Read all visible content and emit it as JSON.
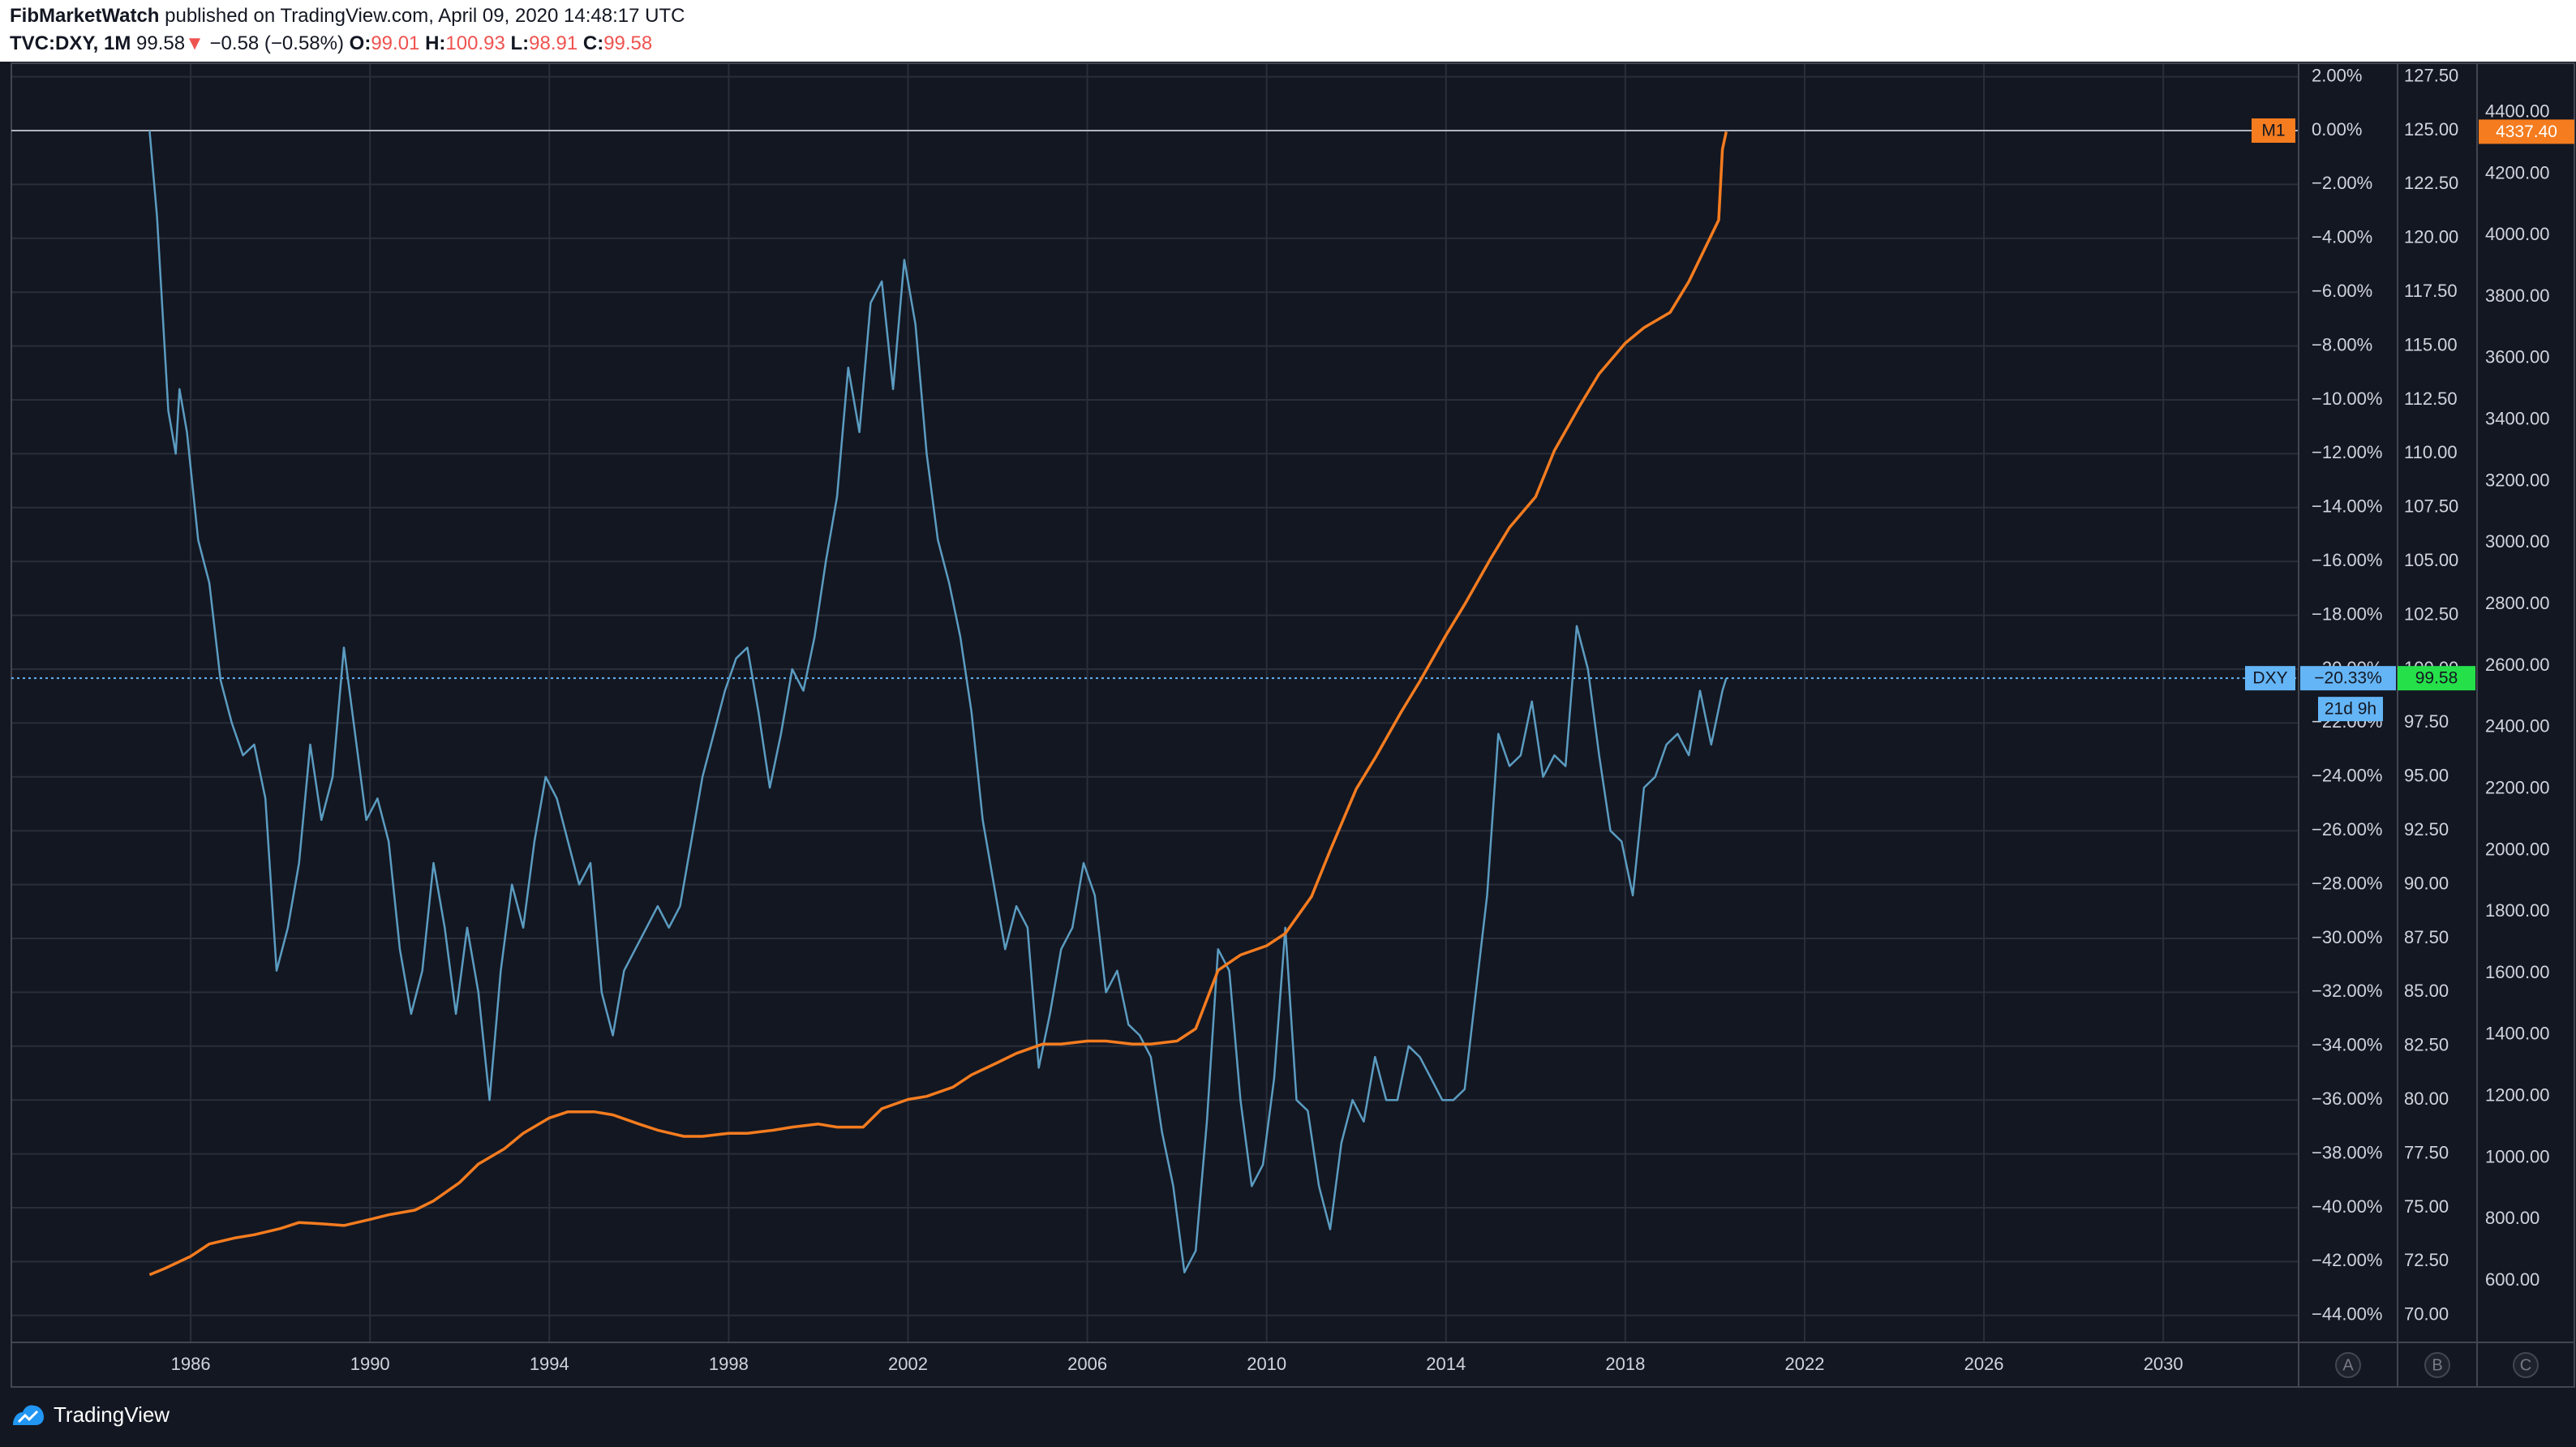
{
  "header": {
    "author": "FibMarketWatch",
    "published_text": "published on TradingView.com, April 09, 2020 14:48:17 UTC",
    "symbol": "TVC:DXY, 1M",
    "price": "99.58",
    "change_arrow": "▼",
    "change": "−0.58 (−0.58%)",
    "o_label": "O:",
    "o_value": "99.01",
    "h_label": "H:",
    "h_value": "100.93",
    "l_label": "L:",
    "l_value": "98.91",
    "c_label": "C:",
    "c_value": "99.58"
  },
  "footer": {
    "brand": "TradingView",
    "logo_icon": "tradingview-logo-icon"
  },
  "colors": {
    "background": "#131722",
    "grid": "#2a2e39",
    "dxy_line": "#5b9cc1",
    "m1_line": "#f57c1f",
    "dxy_tag": "#64b5f6",
    "price_tag": "#26e04a",
    "m1_tag": "#f57c1f",
    "down": "#ef5350"
  },
  "chart_data": {
    "type": "line",
    "x_ticks": [
      "1986",
      "1990",
      "1994",
      "1998",
      "2002",
      "2006",
      "2010",
      "2014",
      "2018",
      "2022",
      "2026",
      "2030"
    ],
    "x_range": [
      "1982-01",
      "2033-01"
    ],
    "scale_a_percent": {
      "ticks": [
        "2.00%",
        "0.00%",
        "−2.00%",
        "−4.00%",
        "−6.00%",
        "−8.00%",
        "−10.00%",
        "−12.00%",
        "−14.00%",
        "−16.00%",
        "−18.00%",
        "−20.00%",
        "−22.00%",
        "−24.00%",
        "−26.00%",
        "−28.00%",
        "−30.00%",
        "−32.00%",
        "−34.00%",
        "−36.00%",
        "−38.00%",
        "−40.00%",
        "−42.00%",
        "−44.00%"
      ],
      "range": [
        -45,
        2.5
      ]
    },
    "scale_b_dxy": {
      "ticks": [
        "127.50",
        "125.00",
        "122.50",
        "120.00",
        "117.50",
        "115.00",
        "112.50",
        "110.00",
        "107.50",
        "105.00",
        "102.50",
        "100.00",
        "97.50",
        "95.00",
        "92.50",
        "90.00",
        "87.50",
        "85.00",
        "82.50",
        "80.00",
        "77.50",
        "75.00",
        "72.50",
        "70.00"
      ],
      "range": [
        68.75,
        128.125
      ]
    },
    "scale_c_m1": {
      "ticks": [
        "4400.00",
        "4200.00",
        "4000.00",
        "3800.00",
        "3600.00",
        "3400.00",
        "3200.00",
        "3000.00",
        "2800.00",
        "2600.00",
        "2400.00",
        "2200.00",
        "2000.00",
        "1800.00",
        "1600.00",
        "1400.00",
        "1200.00",
        "1000.00",
        "800.00",
        "600.00"
      ],
      "range": [
        400,
        4560
      ]
    },
    "scale_labels": [
      "A",
      "B",
      "C"
    ],
    "series": [
      {
        "name": "DXY",
        "scale": "B",
        "points": [
          [
            "1985-02",
            125.0
          ],
          [
            "1985-04",
            121.0
          ],
          [
            "1985-07",
            112.0
          ],
          [
            "1985-09",
            110.0
          ],
          [
            "1985-10",
            113.0
          ],
          [
            "1985-12",
            111.0
          ],
          [
            "1986-03",
            106.0
          ],
          [
            "1986-06",
            104.0
          ],
          [
            "1986-09",
            99.5
          ],
          [
            "1986-12",
            97.5
          ],
          [
            "1987-03",
            96.0
          ],
          [
            "1987-06",
            96.5
          ],
          [
            "1987-09",
            94.0
          ],
          [
            "1987-12",
            86.0
          ],
          [
            "1988-03",
            88.0
          ],
          [
            "1988-06",
            91.0
          ],
          [
            "1988-09",
            96.5
          ],
          [
            "1988-12",
            93.0
          ],
          [
            "1989-03",
            95.0
          ],
          [
            "1989-06",
            101.0
          ],
          [
            "1989-09",
            97.0
          ],
          [
            "1989-12",
            93.0
          ],
          [
            "1990-03",
            94.0
          ],
          [
            "1990-06",
            92.0
          ],
          [
            "1990-09",
            87.0
          ],
          [
            "1990-12",
            84.0
          ],
          [
            "1991-03",
            86.0
          ],
          [
            "1991-06",
            91.0
          ],
          [
            "1991-09",
            88.0
          ],
          [
            "1991-12",
            84.0
          ],
          [
            "1992-03",
            88.0
          ],
          [
            "1992-06",
            85.0
          ],
          [
            "1992-09",
            80.0
          ],
          [
            "1992-12",
            86.0
          ],
          [
            "1993-03",
            90.0
          ],
          [
            "1993-06",
            88.0
          ],
          [
            "1993-09",
            92.0
          ],
          [
            "1993-12",
            95.0
          ],
          [
            "1994-03",
            94.0
          ],
          [
            "1994-06",
            92.0
          ],
          [
            "1994-09",
            90.0
          ],
          [
            "1994-12",
            91.0
          ],
          [
            "1995-03",
            85.0
          ],
          [
            "1995-06",
            83.0
          ],
          [
            "1995-09",
            86.0
          ],
          [
            "1995-12",
            87.0
          ],
          [
            "1996-03",
            88.0
          ],
          [
            "1996-06",
            89.0
          ],
          [
            "1996-09",
            88.0
          ],
          [
            "1996-12",
            89.0
          ],
          [
            "1997-03",
            92.0
          ],
          [
            "1997-06",
            95.0
          ],
          [
            "1997-09",
            97.0
          ],
          [
            "1997-12",
            99.0
          ],
          [
            "1998-03",
            100.5
          ],
          [
            "1998-06",
            101.0
          ],
          [
            "1998-09",
            98.0
          ],
          [
            "1998-12",
            94.5
          ],
          [
            "1999-03",
            97.0
          ],
          [
            "1999-06",
            100.0
          ],
          [
            "1999-09",
            99.0
          ],
          [
            "1999-12",
            101.5
          ],
          [
            "2000-03",
            105.0
          ],
          [
            "2000-06",
            108.0
          ],
          [
            "2000-09",
            114.0
          ],
          [
            "2000-12",
            111.0
          ],
          [
            "2001-03",
            117.0
          ],
          [
            "2001-06",
            118.0
          ],
          [
            "2001-09",
            113.0
          ],
          [
            "2001-12",
            119.0
          ],
          [
            "2002-03",
            116.0
          ],
          [
            "2002-06",
            110.0
          ],
          [
            "2002-09",
            106.0
          ],
          [
            "2002-12",
            104.0
          ],
          [
            "2003-03",
            101.5
          ],
          [
            "2003-06",
            98.0
          ],
          [
            "2003-09",
            93.0
          ],
          [
            "2003-12",
            90.0
          ],
          [
            "2004-03",
            87.0
          ],
          [
            "2004-06",
            89.0
          ],
          [
            "2004-09",
            88.0
          ],
          [
            "2004-12",
            81.5
          ],
          [
            "2005-03",
            84.0
          ],
          [
            "2005-06",
            87.0
          ],
          [
            "2005-09",
            88.0
          ],
          [
            "2005-12",
            91.0
          ],
          [
            "2006-03",
            89.5
          ],
          [
            "2006-06",
            85.0
          ],
          [
            "2006-09",
            86.0
          ],
          [
            "2006-12",
            83.5
          ],
          [
            "2007-03",
            83.0
          ],
          [
            "2007-06",
            82.0
          ],
          [
            "2007-09",
            78.5
          ],
          [
            "2007-12",
            76.0
          ],
          [
            "2008-03",
            72.0
          ],
          [
            "2008-06",
            73.0
          ],
          [
            "2008-09",
            79.0
          ],
          [
            "2008-12",
            87.0
          ],
          [
            "2009-03",
            86.0
          ],
          [
            "2009-06",
            80.0
          ],
          [
            "2009-09",
            76.0
          ],
          [
            "2009-12",
            77.0
          ],
          [
            "2010-03",
            81.0
          ],
          [
            "2010-06",
            88.0
          ],
          [
            "2010-09",
            80.0
          ],
          [
            "2010-12",
            79.5
          ],
          [
            "2011-03",
            76.0
          ],
          [
            "2011-06",
            74.0
          ],
          [
            "2011-09",
            78.0
          ],
          [
            "2011-12",
            80.0
          ],
          [
            "2012-03",
            79.0
          ],
          [
            "2012-06",
            82.0
          ],
          [
            "2012-09",
            80.0
          ],
          [
            "2012-12",
            80.0
          ],
          [
            "2013-03",
            82.5
          ],
          [
            "2013-06",
            82.0
          ],
          [
            "2013-09",
            81.0
          ],
          [
            "2013-12",
            80.0
          ],
          [
            "2014-03",
            80.0
          ],
          [
            "2014-06",
            80.5
          ],
          [
            "2014-09",
            85.0
          ],
          [
            "2014-12",
            89.5
          ],
          [
            "2015-03",
            97.0
          ],
          [
            "2015-06",
            95.5
          ],
          [
            "2015-09",
            96.0
          ],
          [
            "2015-12",
            98.5
          ],
          [
            "2016-03",
            95.0
          ],
          [
            "2016-06",
            96.0
          ],
          [
            "2016-09",
            95.5
          ],
          [
            "2016-12",
            102.0
          ],
          [
            "2017-03",
            100.0
          ],
          [
            "2017-06",
            96.0
          ],
          [
            "2017-09",
            92.5
          ],
          [
            "2017-12",
            92.0
          ],
          [
            "2018-03",
            89.5
          ],
          [
            "2018-06",
            94.5
          ],
          [
            "2018-09",
            95.0
          ],
          [
            "2018-12",
            96.5
          ],
          [
            "2019-03",
            97.0
          ],
          [
            "2019-06",
            96.0
          ],
          [
            "2019-09",
            99.0
          ],
          [
            "2019-12",
            96.5
          ],
          [
            "2020-03",
            99.0
          ],
          [
            "2020-04",
            99.58
          ]
        ]
      },
      {
        "name": "M1",
        "scale": "C",
        "points": [
          [
            "1985-02",
            620
          ],
          [
            "1985-06",
            640
          ],
          [
            "1986-01",
            680
          ],
          [
            "1986-06",
            720
          ],
          [
            "1987-01",
            740
          ],
          [
            "1987-06",
            750
          ],
          [
            "1988-01",
            770
          ],
          [
            "1988-06",
            790
          ],
          [
            "1989-01",
            785
          ],
          [
            "1989-06",
            780
          ],
          [
            "1990-01",
            800
          ],
          [
            "1990-06",
            815
          ],
          [
            "1991-01",
            830
          ],
          [
            "1991-06",
            860
          ],
          [
            "1992-01",
            920
          ],
          [
            "1992-06",
            980
          ],
          [
            "1993-01",
            1030
          ],
          [
            "1993-06",
            1080
          ],
          [
            "1994-01",
            1130
          ],
          [
            "1994-06",
            1150
          ],
          [
            "1995-01",
            1150
          ],
          [
            "1995-06",
            1140
          ],
          [
            "1996-01",
            1110
          ],
          [
            "1996-06",
            1090
          ],
          [
            "1997-01",
            1070
          ],
          [
            "1997-06",
            1070
          ],
          [
            "1998-01",
            1080
          ],
          [
            "1998-06",
            1080
          ],
          [
            "1999-01",
            1090
          ],
          [
            "1999-06",
            1100
          ],
          [
            "2000-01",
            1110
          ],
          [
            "2000-06",
            1100
          ],
          [
            "2001-01",
            1100
          ],
          [
            "2001-06",
            1160
          ],
          [
            "2002-01",
            1190
          ],
          [
            "2002-06",
            1200
          ],
          [
            "2003-01",
            1230
          ],
          [
            "2003-06",
            1270
          ],
          [
            "2004-01",
            1310
          ],
          [
            "2004-06",
            1340
          ],
          [
            "2005-01",
            1370
          ],
          [
            "2005-06",
            1370
          ],
          [
            "2006-01",
            1380
          ],
          [
            "2006-06",
            1380
          ],
          [
            "2007-01",
            1370
          ],
          [
            "2007-06",
            1370
          ],
          [
            "2008-01",
            1380
          ],
          [
            "2008-06",
            1420
          ],
          [
            "2008-12",
            1610
          ],
          [
            "2009-06",
            1660
          ],
          [
            "2010-01",
            1690
          ],
          [
            "2010-06",
            1730
          ],
          [
            "2011-01",
            1850
          ],
          [
            "2011-06",
            2000
          ],
          [
            "2012-01",
            2200
          ],
          [
            "2012-06",
            2300
          ],
          [
            "2013-01",
            2450
          ],
          [
            "2013-06",
            2550
          ],
          [
            "2014-01",
            2700
          ],
          [
            "2014-06",
            2800
          ],
          [
            "2015-01",
            2950
          ],
          [
            "2015-06",
            3050
          ],
          [
            "2016-01",
            3150
          ],
          [
            "2016-06",
            3300
          ],
          [
            "2017-01",
            3450
          ],
          [
            "2017-06",
            3550
          ],
          [
            "2018-01",
            3650
          ],
          [
            "2018-06",
            3700
          ],
          [
            "2019-01",
            3750
          ],
          [
            "2019-06",
            3850
          ],
          [
            "2019-12",
            4000
          ],
          [
            "2020-02",
            4050
          ],
          [
            "2020-03",
            4280
          ],
          [
            "2020-04",
            4337.4
          ]
        ]
      }
    ],
    "tags": {
      "dxy_name": "DXY",
      "dxy_percent": "−20.33%",
      "dxy_price": "99.58",
      "countdown": "21d 9h",
      "m1_name": "M1",
      "m1_percent": "0.00%",
      "m1_value": "4337.40"
    }
  }
}
